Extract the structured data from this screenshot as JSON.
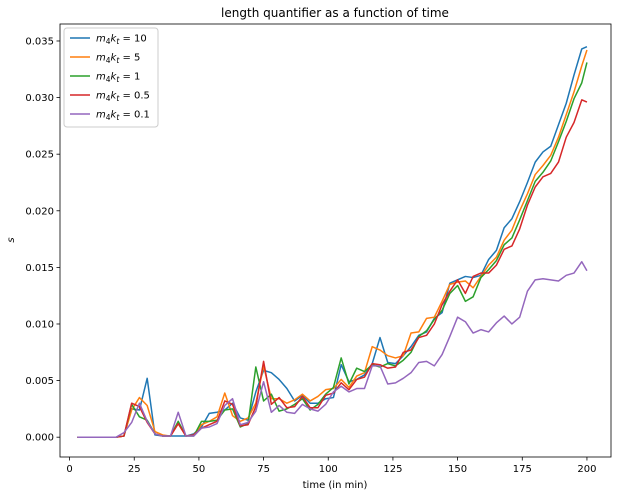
{
  "chart_data": {
    "type": "line",
    "title": "length quantifier as a function of time",
    "xlabel": "time (in min)",
    "ylabel": "s",
    "xlim": [
      -3.7,
      209.3
    ],
    "ylim": [
      -0.00175,
      0.0365
    ],
    "xticks": [
      {
        "value": 0,
        "label": "0"
      },
      {
        "value": 25,
        "label": "25"
      },
      {
        "value": 50,
        "label": "50"
      },
      {
        "value": 75,
        "label": "75"
      },
      {
        "value": 100,
        "label": "100"
      },
      {
        "value": 125,
        "label": "125"
      },
      {
        "value": 150,
        "label": "150"
      },
      {
        "value": 175,
        "label": "175"
      },
      {
        "value": 200,
        "label": "200"
      }
    ],
    "yticks": [
      {
        "value": 0.0,
        "label": "0.000"
      },
      {
        "value": 0.005,
        "label": "0.005"
      },
      {
        "value": 0.01,
        "label": "0.010"
      },
      {
        "value": 0.015,
        "label": "0.015"
      },
      {
        "value": 0.02,
        "label": "0.020"
      },
      {
        "value": 0.025,
        "label": "0.025"
      },
      {
        "value": 0.03,
        "label": "0.030"
      },
      {
        "value": 0.035,
        "label": "0.035"
      }
    ],
    "grid": false,
    "legend_position": "top-left",
    "x": [
      3,
      6,
      9,
      12,
      15,
      18,
      21,
      24,
      27,
      30,
      33,
      36,
      39,
      42,
      45,
      48,
      51,
      54,
      57,
      60,
      63,
      66,
      69,
      72,
      75,
      78,
      81,
      84,
      87,
      90,
      93,
      96,
      99,
      102,
      105,
      108,
      111,
      114,
      117,
      120,
      123,
      126,
      129,
      132,
      135,
      138,
      141,
      144,
      147,
      150,
      153,
      156,
      159,
      162,
      165,
      168,
      171,
      174,
      177,
      180,
      183,
      186,
      189,
      192,
      195,
      198,
      200
    ],
    "series": [
      {
        "name": "m₄kₜ = 10",
        "name_base": "m",
        "name_sub1": "4",
        "name_mid": "k",
        "name_sub2": "t",
        "name_rest": " = 10",
        "color": "#1f77b4",
        "values": [
          0,
          0,
          0,
          0,
          0,
          0,
          0.0001,
          0.0025,
          0.0024,
          0.0052,
          0.0002,
          0.0001,
          0.0001,
          0.0001,
          0.0001,
          0.0003,
          0.0009,
          0.0021,
          0.0022,
          0.0024,
          0.003,
          0.0017,
          0.0015,
          0.004,
          0.0059,
          0.0057,
          0.0051,
          0.0043,
          0.0032,
          0.0037,
          0.003,
          0.003,
          0.0034,
          0.0035,
          0.0064,
          0.0049,
          0.0051,
          0.0055,
          0.0065,
          0.0088,
          0.0066,
          0.0065,
          0.0072,
          0.008,
          0.009,
          0.0093,
          0.0105,
          0.011,
          0.0136,
          0.0139,
          0.0142,
          0.0141,
          0.0143,
          0.0157,
          0.0165,
          0.0185,
          0.0193,
          0.0208,
          0.0225,
          0.0243,
          0.0252,
          0.0257,
          0.0276,
          0.0295,
          0.032,
          0.0343,
          0.0345
        ]
      },
      {
        "name": "m₄kₜ = 5",
        "name_base": "m",
        "name_sub1": "4",
        "name_mid": "k",
        "name_sub2": "t",
        "name_rest": " = 5",
        "color": "#ff7f0e",
        "values": [
          0,
          0,
          0,
          0,
          0,
          0,
          0.0001,
          0.0024,
          0.0035,
          0.0028,
          0.0005,
          0.0002,
          0.0001,
          0.0012,
          0.0001,
          0.0002,
          0.0011,
          0.0014,
          0.0018,
          0.0039,
          0.0019,
          0.0014,
          0.0017,
          0.003,
          0.0063,
          0.0034,
          0.0034,
          0.003,
          0.0033,
          0.0038,
          0.0032,
          0.0036,
          0.0042,
          0.0043,
          0.0051,
          0.0044,
          0.0054,
          0.0057,
          0.008,
          0.0077,
          0.0072,
          0.007,
          0.0072,
          0.0092,
          0.0093,
          0.0105,
          0.0106,
          0.012,
          0.0135,
          0.0137,
          0.0138,
          0.0132,
          0.0142,
          0.0152,
          0.0159,
          0.0174,
          0.0183,
          0.02,
          0.0215,
          0.0232,
          0.024,
          0.0249,
          0.0265,
          0.0285,
          0.0305,
          0.0328,
          0.0342
        ]
      },
      {
        "name": "m₄kₜ = 1",
        "name_base": "m",
        "name_sub1": "4",
        "name_mid": "k",
        "name_sub2": "t",
        "name_rest": " = 1",
        "color": "#2ca02c",
        "values": [
          0,
          0,
          0,
          0,
          0,
          0,
          0.0001,
          0.0029,
          0.0018,
          0.0015,
          0.0003,
          0.0001,
          0.0001,
          0.0014,
          0.0001,
          0.0001,
          0.0014,
          0.0014,
          0.0015,
          0.0024,
          0.0025,
          0.0009,
          0.0012,
          0.0062,
          0.0032,
          0.0038,
          0.0023,
          0.0025,
          0.0029,
          0.0034,
          0.0024,
          0.0029,
          0.0038,
          0.0044,
          0.007,
          0.0047,
          0.0061,
          0.0058,
          0.0064,
          0.0062,
          0.0065,
          0.0063,
          0.0068,
          0.0075,
          0.0089,
          0.0094,
          0.0104,
          0.0112,
          0.0127,
          0.0134,
          0.012,
          0.0124,
          0.0141,
          0.0148,
          0.0156,
          0.017,
          0.0176,
          0.0192,
          0.0209,
          0.0226,
          0.0234,
          0.0244,
          0.0261,
          0.0279,
          0.0299,
          0.0313,
          0.0331
        ]
      },
      {
        "name": "m₄kₜ = 0.5",
        "name_base": "m",
        "name_sub1": "4",
        "name_mid": "k",
        "name_sub2": "t",
        "name_rest": " = 0.5",
        "color": "#d62728",
        "values": [
          0,
          0,
          0,
          0,
          0,
          0,
          0.0001,
          0.003,
          0.0027,
          0.0013,
          0.0003,
          0.0001,
          0.0001,
          0.0012,
          0.0001,
          0.0002,
          0.0008,
          0.0011,
          0.0014,
          0.0032,
          0.0029,
          0.001,
          0.0011,
          0.0027,
          0.0067,
          0.0029,
          0.0035,
          0.0026,
          0.0027,
          0.0036,
          0.0026,
          0.0026,
          0.0037,
          0.0039,
          0.0048,
          0.0042,
          0.0051,
          0.0053,
          0.0065,
          0.0064,
          0.0061,
          0.0062,
          0.0075,
          0.0077,
          0.0088,
          0.009,
          0.01,
          0.0117,
          0.0129,
          0.0139,
          0.0127,
          0.0142,
          0.0145,
          0.0145,
          0.0152,
          0.0166,
          0.0169,
          0.0184,
          0.0205,
          0.0221,
          0.023,
          0.0233,
          0.0243,
          0.0265,
          0.0278,
          0.0298,
          0.0296
        ]
      },
      {
        "name": "m₄kₜ = 0.1",
        "name_base": "m",
        "name_sub1": "4",
        "name_mid": "k",
        "name_sub2": "t",
        "name_rest": " = 0.1",
        "color": "#9467bd",
        "values": [
          0,
          0,
          0,
          0,
          0,
          0,
          0.0004,
          0.0013,
          0.003,
          0.0014,
          0.0003,
          0.0001,
          0.0001,
          0.0022,
          0.0001,
          0.0001,
          0.0008,
          0.0009,
          0.0012,
          0.0028,
          0.0034,
          0.0011,
          0.0013,
          0.0023,
          0.0049,
          0.0022,
          0.0028,
          0.0022,
          0.0021,
          0.0029,
          0.0025,
          0.0023,
          0.0029,
          0.004,
          0.0045,
          0.004,
          0.0043,
          0.0043,
          0.0063,
          0.0063,
          0.0047,
          0.0048,
          0.0052,
          0.0057,
          0.0066,
          0.0067,
          0.0063,
          0.0073,
          0.0089,
          0.0106,
          0.0102,
          0.0092,
          0.0095,
          0.0093,
          0.0101,
          0.0107,
          0.01,
          0.0106,
          0.0129,
          0.0139,
          0.014,
          0.0139,
          0.0138,
          0.0143,
          0.0145,
          0.0155,
          0.0147
        ]
      }
    ]
  }
}
